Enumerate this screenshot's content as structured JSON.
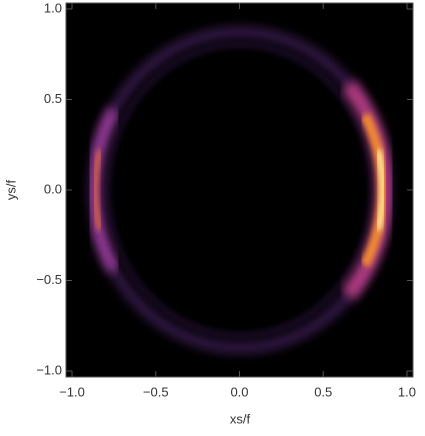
{
  "chart_data": {
    "type": "density",
    "x_label": "xs/f",
    "y_label": "ys/f",
    "xlim": [
      -1.036,
      1.036
    ],
    "ylim": [
      -1.033,
      1.033
    ],
    "xticks": [
      {
        "value": -1,
        "label": "−1.0"
      },
      {
        "value": -0.5,
        "label": "−0.5"
      },
      {
        "value": 0,
        "label": "0.0"
      },
      {
        "value": 0.5,
        "label": "0.5"
      },
      {
        "value": 1,
        "label": "1.0"
      }
    ],
    "yticks": [
      {
        "value": -1,
        "label": "−1.0"
      },
      {
        "value": -0.5,
        "label": "−0.5"
      },
      {
        "value": 0,
        "label": "0.0"
      },
      {
        "value": 0.5,
        "label": "0.5"
      },
      {
        "value": 1,
        "label": "1.0"
      }
    ]
  }
}
